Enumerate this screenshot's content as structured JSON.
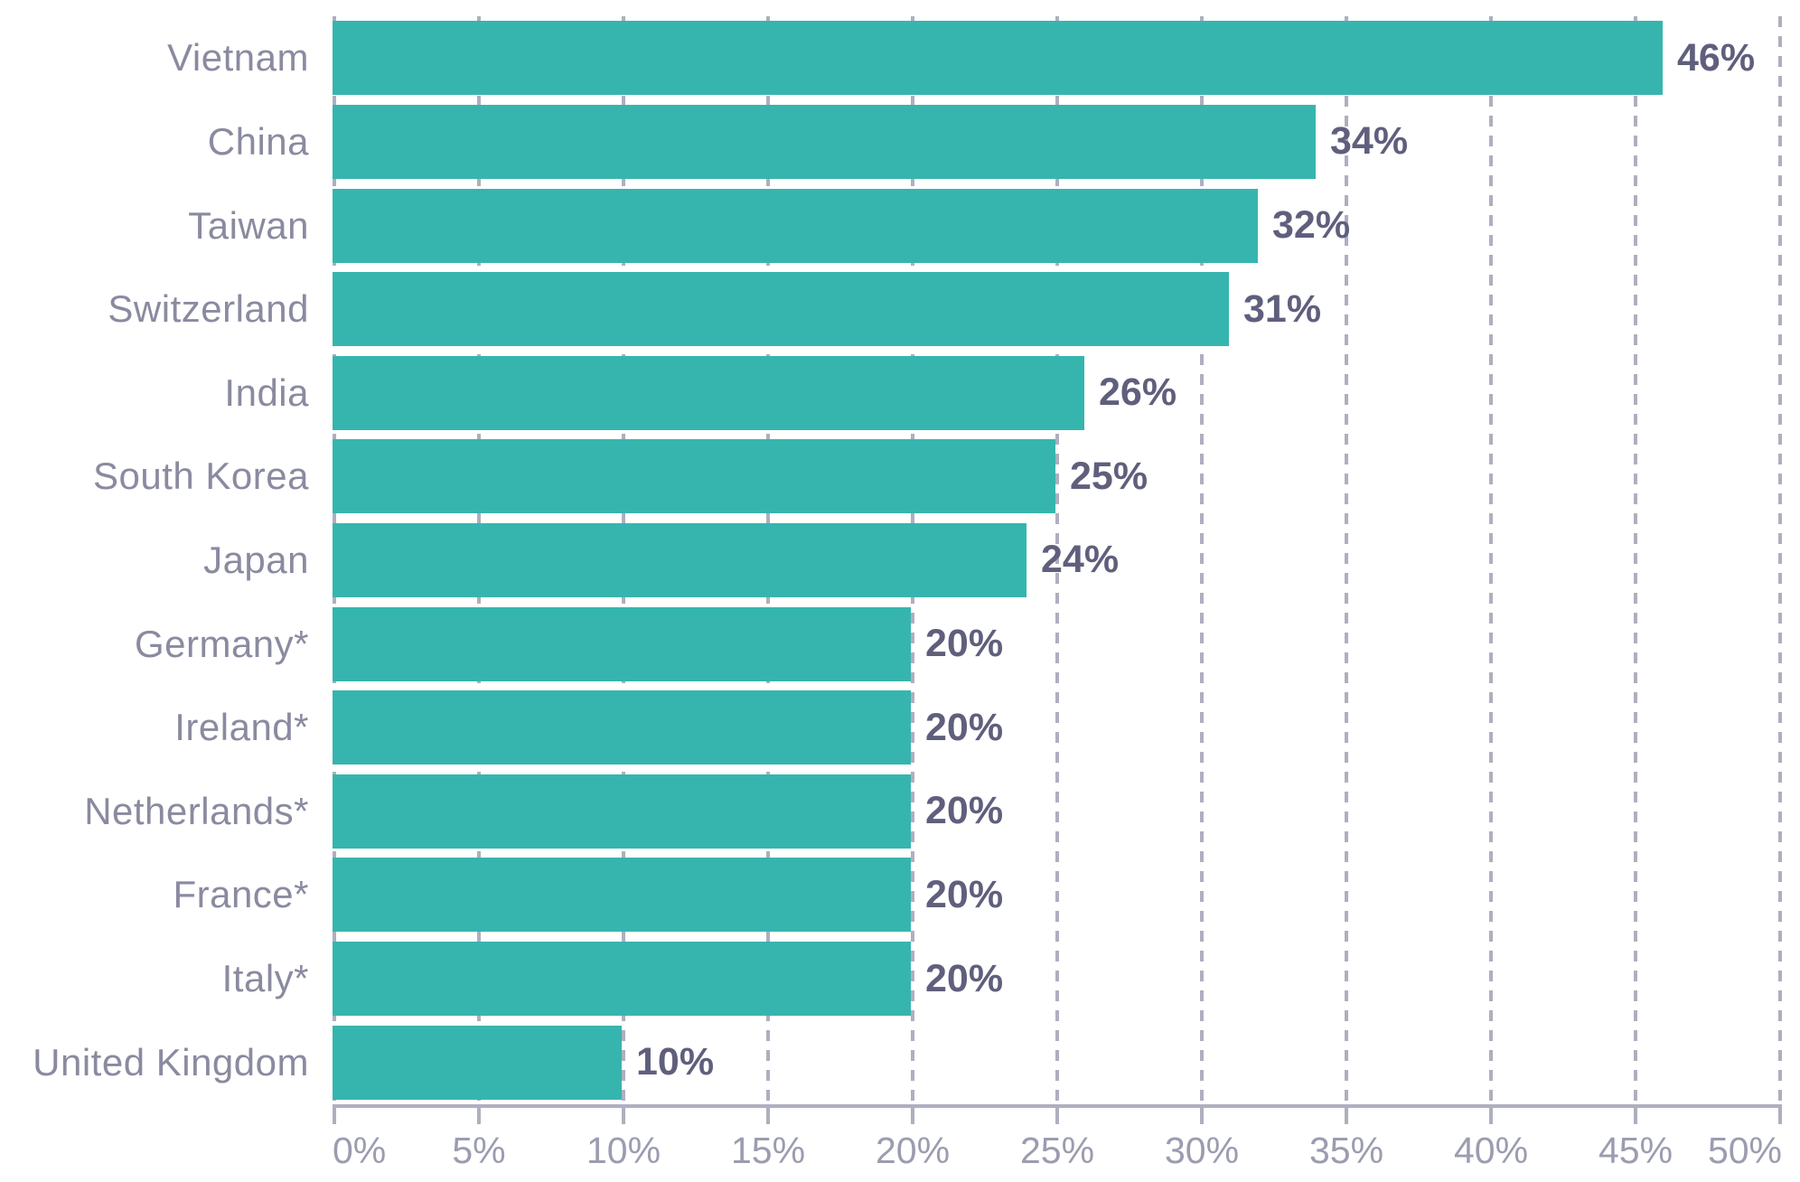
{
  "chart_data": {
    "type": "bar",
    "orientation": "horizontal",
    "title": "",
    "xlabel": "",
    "ylabel": "",
    "xlim": [
      0,
      50
    ],
    "grid": "vertical-dashed",
    "legend": "none",
    "bar_color": "#36b5ae",
    "grid_color": "#aeafbf",
    "category_label_color": "#8a8aa0",
    "value_label_color": "#5f5f7d",
    "axis_tick_label_color": "#9b9cb0",
    "categories": [
      "Vietnam",
      "China",
      "Taiwan",
      "Switzerland",
      "India",
      "South Korea",
      "Japan",
      "Germany*",
      "Ireland*",
      "Netherlands*",
      "France*",
      "Italy*",
      "United Kingdom"
    ],
    "values": [
      46,
      34,
      32,
      31,
      26,
      25,
      24,
      20,
      20,
      20,
      20,
      20,
      10
    ],
    "rows": [
      {
        "label": "Vietnam",
        "value": 46,
        "display": "46%"
      },
      {
        "label": "China",
        "value": 34,
        "display": "34%"
      },
      {
        "label": "Taiwan",
        "value": 32,
        "display": "32%"
      },
      {
        "label": "Switzerland",
        "value": 31,
        "display": "31%"
      },
      {
        "label": "India",
        "value": 26,
        "display": "26%"
      },
      {
        "label": "South Korea",
        "value": 25,
        "display": "25%"
      },
      {
        "label": "Japan",
        "value": 24,
        "display": "24%"
      },
      {
        "label": "Germany*",
        "value": 20,
        "display": "20%"
      },
      {
        "label": "Ireland*",
        "value": 20,
        "display": "20%"
      },
      {
        "label": "Netherlands*",
        "value": 20,
        "display": "20%"
      },
      {
        "label": "France*",
        "value": 20,
        "display": "20%"
      },
      {
        "label": "Italy*",
        "value": 20,
        "display": "20%"
      },
      {
        "label": "United Kingdom",
        "value": 10,
        "display": "10%"
      }
    ],
    "x_ticks": [
      "0%",
      "5%",
      "10%",
      "15%",
      "20%",
      "25%",
      "30%",
      "35%",
      "40%",
      "45%",
      "50%"
    ]
  }
}
